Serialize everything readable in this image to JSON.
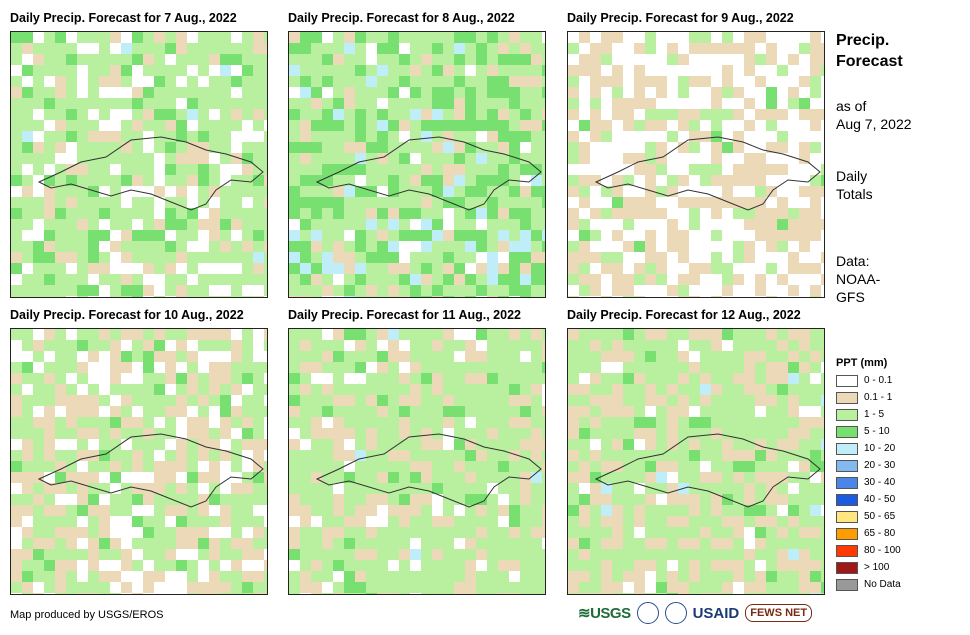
{
  "panels": [
    {
      "title": "Daily Precip. Forecast for 7 Aug., 2022"
    },
    {
      "title": "Daily Precip. Forecast for 8 Aug., 2022"
    },
    {
      "title": "Daily Precip. Forecast for 9 Aug., 2022"
    },
    {
      "title": "Daily Precip. Forecast for 10 Aug., 2022"
    },
    {
      "title": "Daily Precip. Forecast for 11 Aug., 2022"
    },
    {
      "title": "Daily Precip. Forecast for 12 Aug., 2022"
    }
  ],
  "side": {
    "heading_line1": "Precip.",
    "heading_line2": "Forecast",
    "asof_line1": "as of",
    "asof_line2": "Aug 7, 2022",
    "daily_line1": "Daily",
    "daily_line2": "Totals",
    "data_line1": "Data:",
    "data_line2": "NOAA-",
    "data_line3": "GFS"
  },
  "legend": {
    "title": "PPT (mm)",
    "items": [
      {
        "label": "0 - 0.1",
        "color": "#ffffff"
      },
      {
        "label": "0.1 - 1",
        "color": "#ecd9b8"
      },
      {
        "label": "1 - 5",
        "color": "#b8f0a0"
      },
      {
        "label": "5 - 10",
        "color": "#78e070"
      },
      {
        "label": "10 - 20",
        "color": "#bfeef8"
      },
      {
        "label": "20 - 30",
        "color": "#84b8f0"
      },
      {
        "label": "30 - 40",
        "color": "#4a86e8"
      },
      {
        "label": "40 - 50",
        "color": "#1c5ae0"
      },
      {
        "label": "50 - 65",
        "color": "#ffe680"
      },
      {
        "label": "65 - 80",
        "color": "#ff9d00"
      },
      {
        "label": "80 - 100",
        "color": "#ff3a00"
      },
      {
        "label": "> 100",
        "color": "#a01818"
      },
      {
        "label": "No Data",
        "color": "#999999"
      }
    ]
  },
  "credit": "Map produced by USGS/EROS",
  "logos": {
    "usgs": "≋USGS",
    "usaid": "USAID",
    "fews": "FEWS NET"
  }
}
